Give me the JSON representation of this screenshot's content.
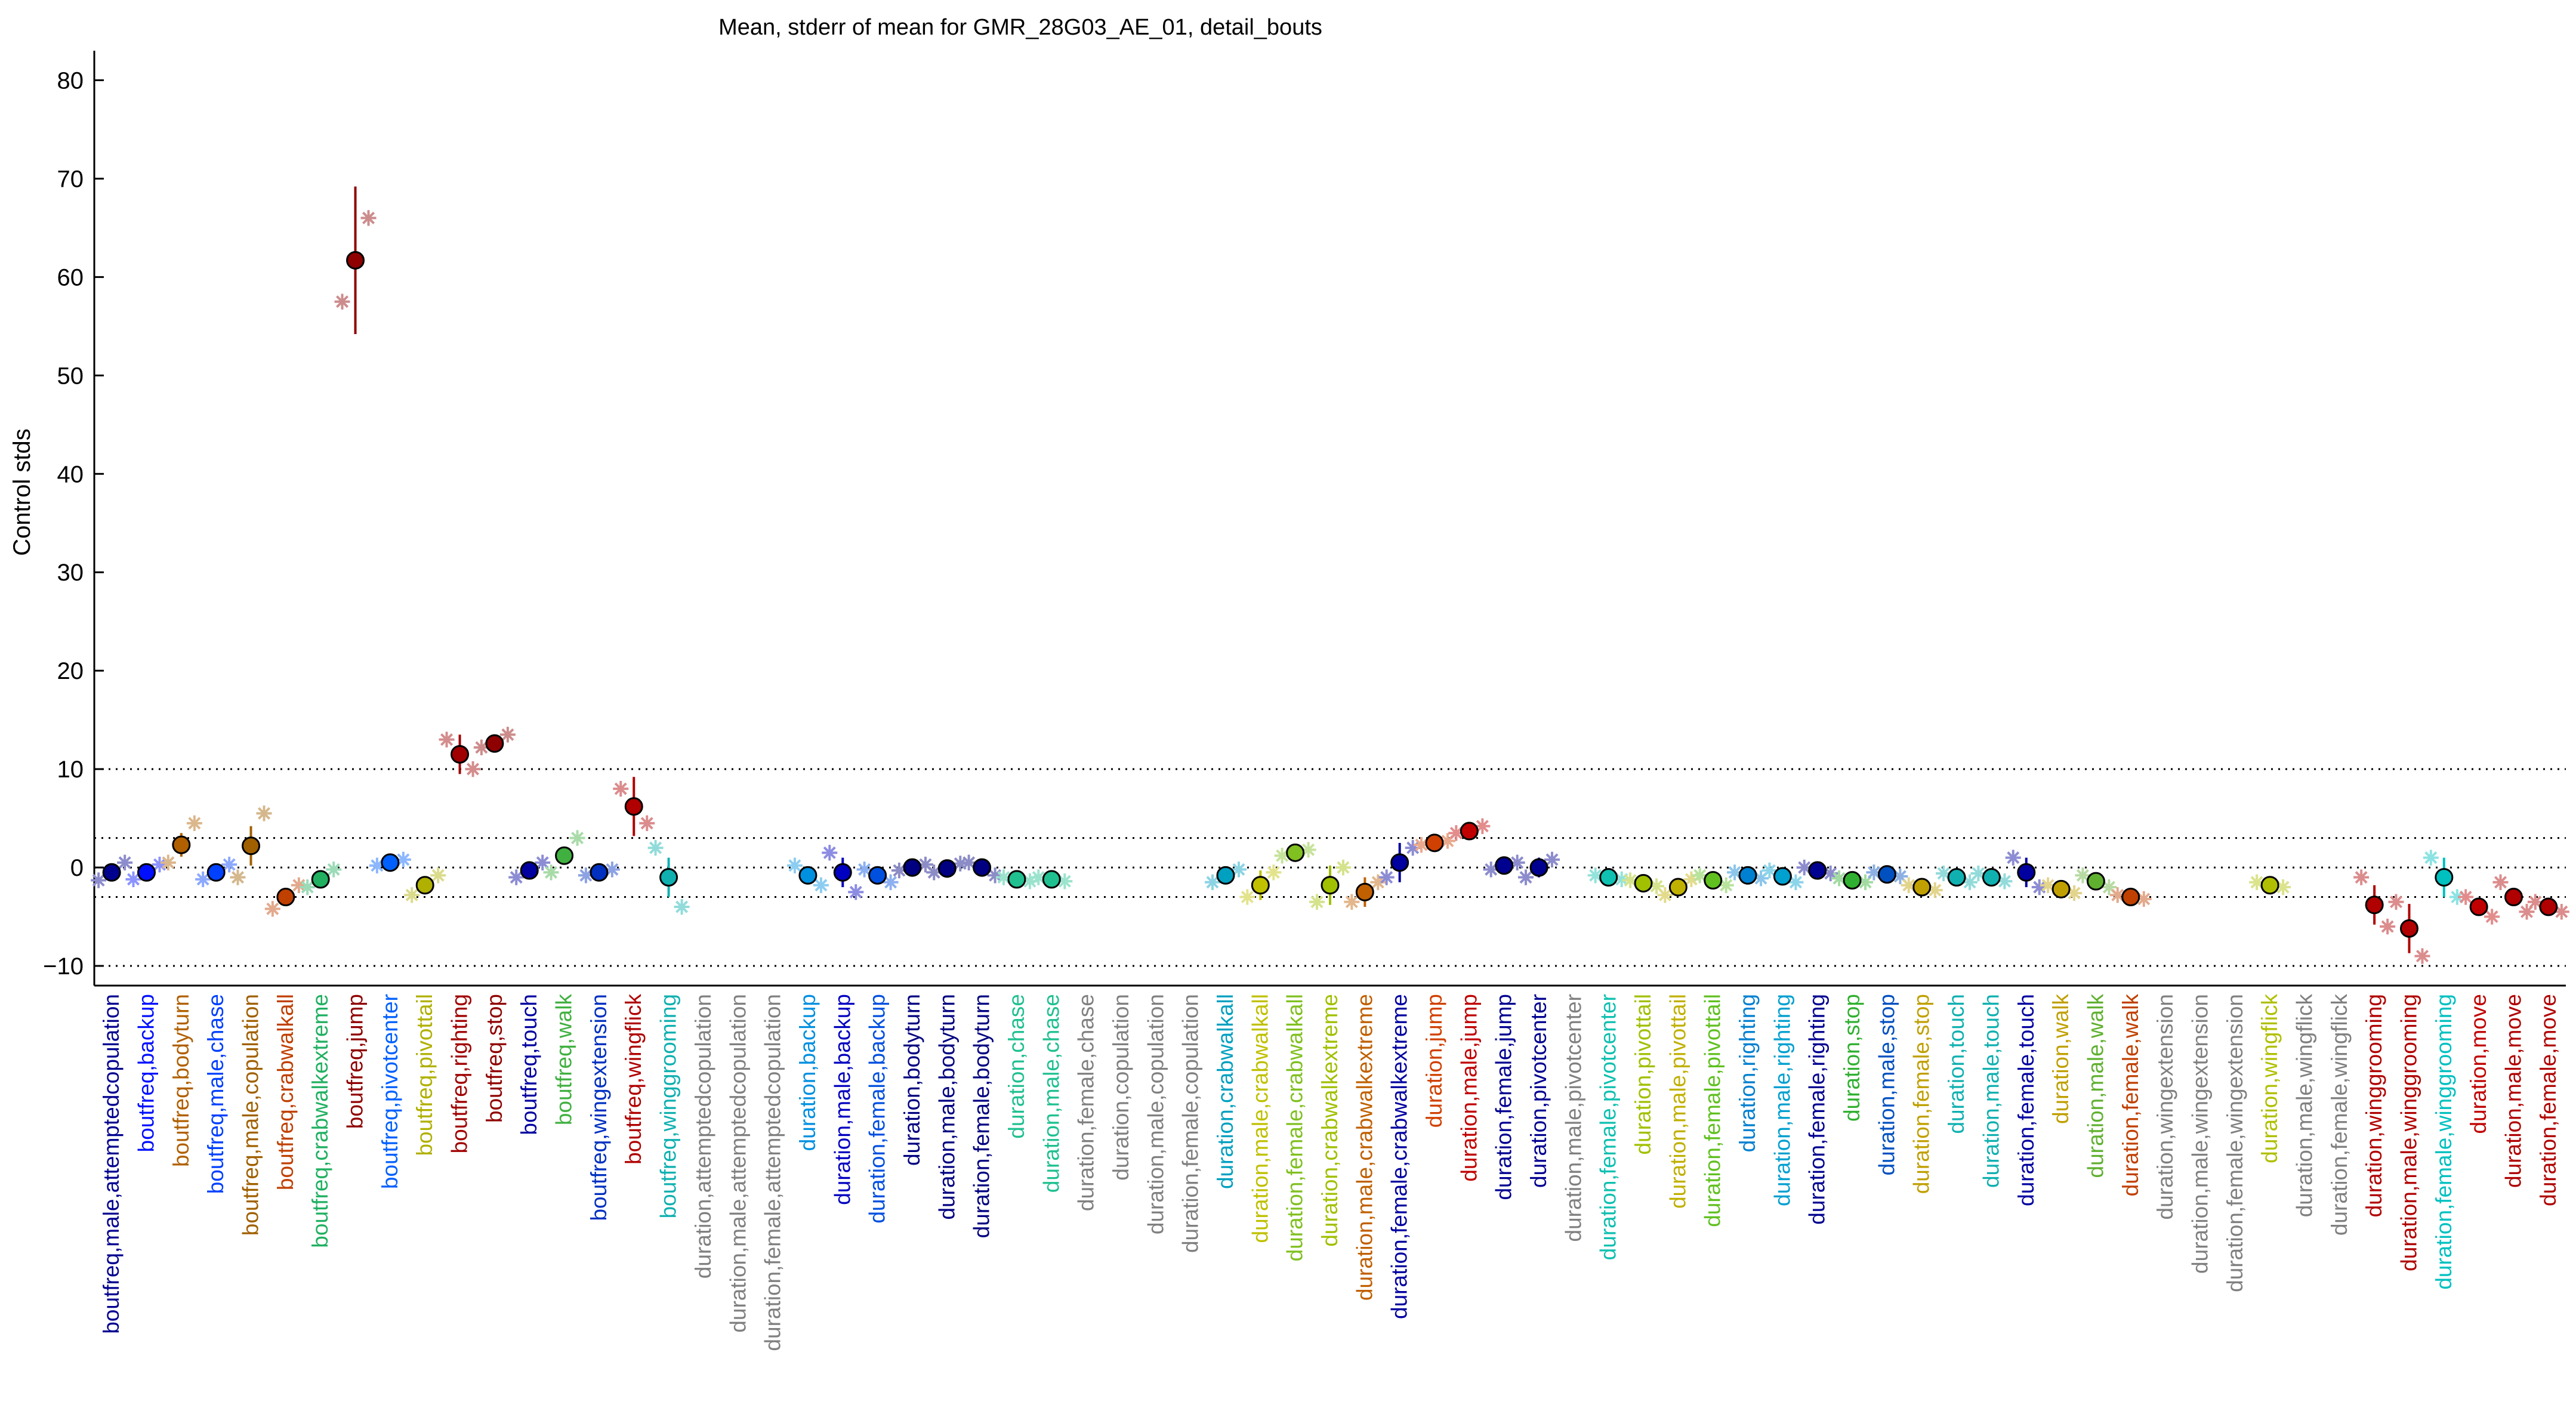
{
  "chart_data": {
    "type": "scatter",
    "title": "Mean, stderr of mean for GMR_28G03_AE_01, detail_bouts",
    "xlabel": "",
    "ylabel": "Control stds",
    "ylim": [
      -12,
      83
    ],
    "yticks": [
      -10,
      0,
      10,
      20,
      30,
      40,
      50,
      60,
      70,
      80
    ],
    "reference_lines": [
      -10,
      -3,
      0,
      3,
      10
    ],
    "grid": false,
    "legend": "none",
    "categories": [
      {
        "label": "boutfreq,male,attemptedcopulation",
        "color": "#00008f",
        "mean": -0.5,
        "err": 0.6,
        "pts": [
          -1.3,
          0.5
        ]
      },
      {
        "label": "boutfreq,backup",
        "color": "#0010ff",
        "mean": -0.5,
        "err": 0.5,
        "pts": [
          -1.2,
          0.3
        ]
      },
      {
        "label": "boutfreq,bodyturn",
        "color": "#b06000",
        "mean": 2.3,
        "err": 1.2,
        "pts": [
          0.5,
          4.5
        ]
      },
      {
        "label": "boutfreq,male,chase",
        "color": "#0040ff",
        "mean": -0.5,
        "err": 0.6,
        "pts": [
          -1.2,
          0.3
        ]
      },
      {
        "label": "boutfreq,male,copulation",
        "color": "#a06000",
        "mean": 2.2,
        "err": 2.0,
        "pts": [
          -1.0,
          5.5
        ]
      },
      {
        "label": "boutfreq,crabwalkall",
        "color": "#c04000",
        "mean": -3.0,
        "err": 0.7,
        "pts": [
          -4.2,
          -1.8
        ]
      },
      {
        "label": "boutfreq,crabwalkextreme",
        "color": "#20b060",
        "mean": -1.2,
        "err": 0.5,
        "pts": [
          -2.0,
          -0.2
        ]
      },
      {
        "label": "boutfreq,jump",
        "color": "#8f0000",
        "mean": 61.7,
        "err": 7.5,
        "pts": [
          57.5,
          66.0
        ]
      },
      {
        "label": "boutfreq,pivotcenter",
        "color": "#0060ff",
        "mean": 0.5,
        "err": 0.6,
        "pts": [
          0.2,
          0.8
        ]
      },
      {
        "label": "boutfreq,pivottail",
        "color": "#b0b000",
        "mean": -1.8,
        "err": 0.8,
        "pts": [
          -2.8,
          -0.8
        ]
      },
      {
        "label": "boutfreq,righting",
        "color": "#a00000",
        "mean": 11.5,
        "err": 2.0,
        "pts": [
          13.0,
          10.0
        ]
      },
      {
        "label": "boutfreq,stop",
        "color": "#8f0000",
        "mean": 12.6,
        "err": 0.8,
        "pts": [
          12.2,
          13.5
        ]
      },
      {
        "label": "boutfreq,touch",
        "color": "#0000a0",
        "mean": -0.3,
        "err": 0.6,
        "pts": [
          -1.0,
          0.5
        ]
      },
      {
        "label": "boutfreq,walk",
        "color": "#40b040",
        "mean": 1.2,
        "err": 0.8,
        "pts": [
          -0.5,
          3.0
        ]
      },
      {
        "label": "boutfreq,wingextension",
        "color": "#0030c0",
        "mean": -0.5,
        "err": 0.4,
        "pts": [
          -0.8,
          -0.2
        ]
      },
      {
        "label": "boutfreq,wingflick",
        "color": "#b00000",
        "mean": 6.2,
        "err": 3.0,
        "pts": [
          8.0,
          4.5
        ]
      },
      {
        "label": "boutfreq,winggrooming",
        "color": "#10b0b0",
        "mean": -1.0,
        "err": 2.0,
        "pts": [
          2.0,
          -4.0
        ]
      },
      {
        "label": "duration,attemptedcopulation",
        "color": "#808080",
        "mean": null
      },
      {
        "label": "duration,male,attemptedcopulation",
        "color": "#808080",
        "mean": null
      },
      {
        "label": "duration,female,attemptedcopulation",
        "color": "#808080",
        "mean": null
      },
      {
        "label": "duration,backup",
        "color": "#0090e0",
        "mean": -0.8,
        "err": 0.6,
        "pts": [
          0.2,
          -1.8
        ]
      },
      {
        "label": "duration,male,backup",
        "color": "#0000c0",
        "mean": -0.5,
        "err": 1.5,
        "pts": [
          1.5,
          -2.5
        ]
      },
      {
        "label": "duration,female,backup",
        "color": "#0050e0",
        "mean": -0.8,
        "err": 0.8,
        "pts": [
          -0.2,
          -1.5
        ]
      },
      {
        "label": "duration,bodyturn",
        "color": "#000080",
        "mean": 0.0,
        "err": 0.4,
        "pts": [
          -0.3,
          0.3
        ]
      },
      {
        "label": "duration,male,bodyturn",
        "color": "#000080",
        "mean": -0.1,
        "err": 0.5,
        "pts": [
          -0.5,
          0.4
        ]
      },
      {
        "label": "duration,female,bodyturn",
        "color": "#000080",
        "mean": 0.0,
        "err": 0.6,
        "pts": [
          0.5,
          -0.8
        ]
      },
      {
        "label": "duration,chase",
        "color": "#20c090",
        "mean": -1.2,
        "err": 0.4,
        "pts": [
          -1.0,
          -1.4
        ]
      },
      {
        "label": "duration,male,chase",
        "color": "#20c090",
        "mean": -1.2,
        "err": 0.4,
        "pts": [
          -1.0,
          -1.4
        ]
      },
      {
        "label": "duration,female,chase",
        "color": "#808080",
        "mean": null
      },
      {
        "label": "duration,copulation",
        "color": "#808080",
        "mean": null
      },
      {
        "label": "duration,male,copulation",
        "color": "#808080",
        "mean": null
      },
      {
        "label": "duration,female,copulation",
        "color": "#808080",
        "mean": null
      },
      {
        "label": "duration,crabwalkall",
        "color": "#00a0c0",
        "mean": -0.8,
        "err": 0.8,
        "pts": [
          -1.5,
          -0.2
        ]
      },
      {
        "label": "duration,male,crabwalkall",
        "color": "#c0c000",
        "mean": -1.8,
        "err": 1.5,
        "pts": [
          -3.0,
          -0.5
        ]
      },
      {
        "label": "duration,female,crabwalkall",
        "color": "#80c020",
        "mean": 1.5,
        "err": 0.5,
        "pts": [
          1.2,
          1.8
        ]
      },
      {
        "label": "duration,crabwalkextreme",
        "color": "#a0c000",
        "mean": -1.8,
        "err": 2.0,
        "pts": [
          -3.5,
          0.0
        ]
      },
      {
        "label": "duration,male,crabwalkextreme",
        "color": "#c06000",
        "mean": -2.5,
        "err": 1.5,
        "pts": [
          -3.5,
          -1.5
        ]
      },
      {
        "label": "duration,female,crabwalkextreme",
        "color": "#0000a0",
        "mean": 0.5,
        "err": 2.0,
        "pts": [
          -1.0,
          2.0
        ]
      },
      {
        "label": "duration,jump",
        "color": "#d04000",
        "mean": 2.5,
        "err": 0.3,
        "pts": [
          2.3,
          2.7
        ]
      },
      {
        "label": "duration,male,jump",
        "color": "#c00000",
        "mean": 3.7,
        "err": 0.5,
        "pts": [
          3.5,
          4.2
        ]
      },
      {
        "label": "duration,female,jump",
        "color": "#000090",
        "mean": 0.2,
        "err": 0.5,
        "pts": [
          -0.2,
          0.5
        ]
      },
      {
        "label": "duration,pivotcenter",
        "color": "#000090",
        "mean": 0.0,
        "err": 1.0,
        "pts": [
          -1.0,
          0.8
        ]
      },
      {
        "label": "duration,male,pivotcenter",
        "color": "#808080",
        "mean": null
      },
      {
        "label": "duration,female,pivotcenter",
        "color": "#10c0b0",
        "mean": -1.0,
        "err": 0.3,
        "pts": [
          -0.8,
          -1.2
        ]
      },
      {
        "label": "duration,pivottail",
        "color": "#a0c000",
        "mean": -1.6,
        "err": 0.4,
        "pts": [
          -1.3,
          -1.9
        ]
      },
      {
        "label": "duration,male,pivottail",
        "color": "#c0b000",
        "mean": -2.0,
        "err": 0.8,
        "pts": [
          -2.8,
          -1.2
        ]
      },
      {
        "label": "duration,female,pivottail",
        "color": "#60c020",
        "mean": -1.3,
        "err": 0.5,
        "pts": [
          -0.8,
          -1.8
        ]
      },
      {
        "label": "duration,righting",
        "color": "#0080d0",
        "mean": -0.8,
        "err": 0.4,
        "pts": [
          -0.5,
          -1.1
        ]
      },
      {
        "label": "duration,male,righting",
        "color": "#00a0d0",
        "mean": -0.9,
        "err": 0.6,
        "pts": [
          -0.3,
          -1.5
        ]
      },
      {
        "label": "duration,female,righting",
        "color": "#000090",
        "mean": -0.3,
        "err": 0.4,
        "pts": [
          0.0,
          -0.6
        ]
      },
      {
        "label": "duration,stop",
        "color": "#30b030",
        "mean": -1.3,
        "err": 0.3,
        "pts": [
          -1.1,
          -1.5
        ]
      },
      {
        "label": "duration,male,stop",
        "color": "#0050c0",
        "mean": -0.7,
        "err": 0.4,
        "pts": [
          -0.5,
          -0.9
        ]
      },
      {
        "label": "duration,female,stop",
        "color": "#c0a000",
        "mean": -2.0,
        "err": 0.4,
        "pts": [
          -1.8,
          -2.3
        ]
      },
      {
        "label": "duration,touch",
        "color": "#10b0b0",
        "mean": -1.0,
        "err": 0.5,
        "pts": [
          -0.6,
          -1.5
        ]
      },
      {
        "label": "duration,male,touch",
        "color": "#10b0b0",
        "mean": -1.0,
        "err": 0.5,
        "pts": [
          -0.6,
          -1.4
        ]
      },
      {
        "label": "duration,female,touch",
        "color": "#0000a0",
        "mean": -0.5,
        "err": 1.5,
        "pts": [
          1.0,
          -2.0
        ]
      },
      {
        "label": "duration,walk",
        "color": "#c0a000",
        "mean": -2.2,
        "err": 0.5,
        "pts": [
          -1.8,
          -2.6
        ]
      },
      {
        "label": "duration,male,walk",
        "color": "#60b030",
        "mean": -1.4,
        "err": 0.6,
        "pts": [
          -0.8,
          -2.0
        ]
      },
      {
        "label": "duration,female,walk",
        "color": "#c04000",
        "mean": -3.0,
        "err": 0.4,
        "pts": [
          -2.8,
          -3.2
        ]
      },
      {
        "label": "duration,wingextension",
        "color": "#808080",
        "mean": null
      },
      {
        "label": "duration,male,wingextension",
        "color": "#808080",
        "mean": null
      },
      {
        "label": "duration,female,wingextension",
        "color": "#808080",
        "mean": null
      },
      {
        "label": "duration,wingflick",
        "color": "#b0c000",
        "mean": -1.8,
        "err": 0.4,
        "pts": [
          -1.5,
          -2.0
        ]
      },
      {
        "label": "duration,male,wingflick",
        "color": "#808080",
        "mean": null
      },
      {
        "label": "duration,female,wingflick",
        "color": "#808080",
        "mean": null
      },
      {
        "label": "duration,winggrooming",
        "color": "#b00000",
        "mean": -3.8,
        "err": 2.0,
        "pts": [
          -1.0,
          -6.0
        ]
      },
      {
        "label": "duration,male,winggrooming",
        "color": "#b00000",
        "mean": -6.2,
        "err": 2.5,
        "pts": [
          -3.5,
          -9.0
        ]
      },
      {
        "label": "duration,female,winggrooming",
        "color": "#00c0c0",
        "mean": -1.0,
        "err": 2.0,
        "pts": [
          1.0,
          -3.0
        ]
      },
      {
        "label": "duration,move",
        "color": "#c00000",
        "mean": -4.0,
        "err": 0.8,
        "pts": [
          -3.0,
          -5.0
        ]
      },
      {
        "label": "duration,male,move",
        "color": "#b00000",
        "mean": -3.0,
        "err": 0.8,
        "pts": [
          -1.5,
          -4.5
        ]
      },
      {
        "label": "duration,female,move",
        "color": "#b00000",
        "mean": -4.0,
        "err": 0.6,
        "pts": [
          -3.5,
          -4.5
        ]
      }
    ]
  }
}
